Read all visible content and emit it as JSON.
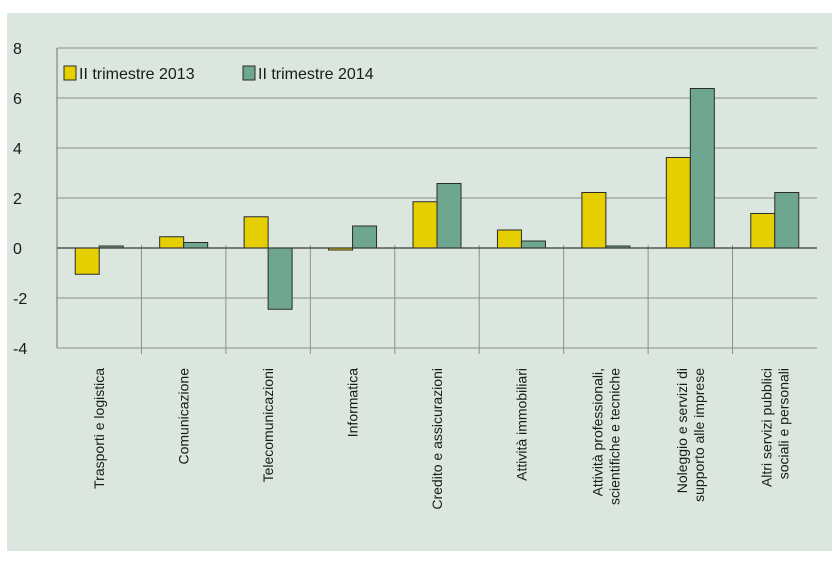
{
  "chart_data": {
    "type": "bar",
    "title": "",
    "xlabel": "",
    "ylabel": "",
    "ylim": [
      -4,
      8
    ],
    "yticks": [
      8,
      6,
      4,
      2,
      0,
      -2,
      -4
    ],
    "grid": true,
    "legend_position": "top-left",
    "categories": [
      [
        "Trasporti e logistica"
      ],
      [
        "Comunicazione"
      ],
      [
        "Telecomunicazioni"
      ],
      [
        "Informatica"
      ],
      [
        "Credito e assicurazioni"
      ],
      [
        "Attività immobiliari"
      ],
      [
        "Attività professionali,",
        "scientifiche e tecniche"
      ],
      [
        "Noleggio e servizi di",
        "supporto alle imprese"
      ],
      [
        "Altri servizi pubblici",
        "sociali e personali"
      ]
    ],
    "series": [
      {
        "name": "II trimestre 2013",
        "color": "#e6cf00",
        "values": [
          -1.05,
          0.45,
          1.25,
          -0.08,
          1.85,
          0.72,
          2.22,
          3.62,
          1.38
        ]
      },
      {
        "name": "II trimestre 2014",
        "color": "#6fa68f",
        "values": [
          0.08,
          0.22,
          -2.45,
          0.88,
          2.58,
          0.28,
          0.08,
          6.38,
          2.22
        ]
      }
    ]
  }
}
